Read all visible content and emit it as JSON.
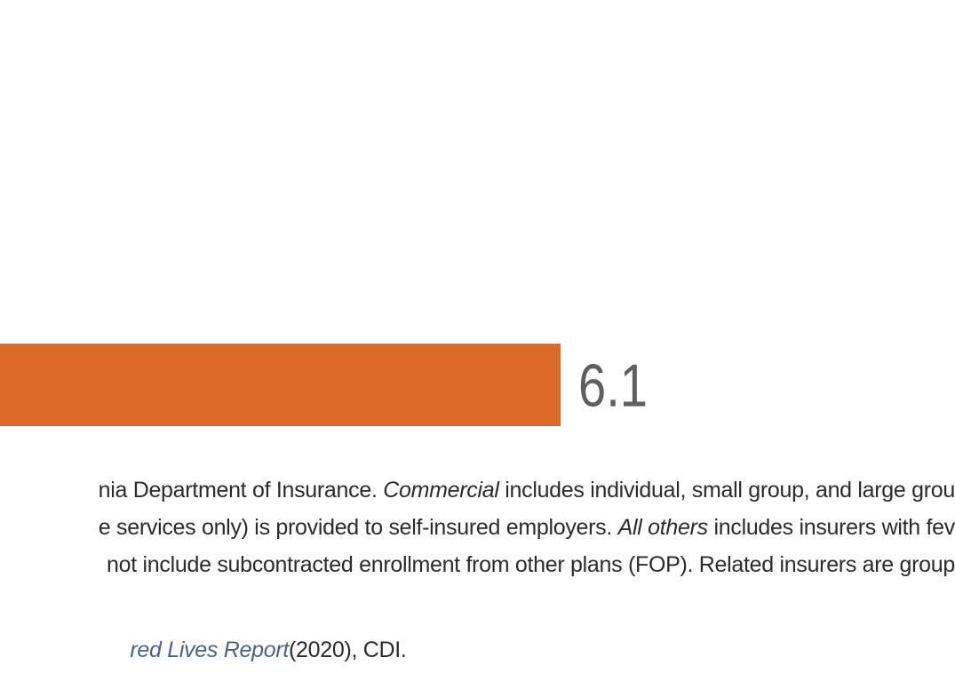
{
  "colors": {
    "bar": "#de6828",
    "label": "#5f5f5f",
    "text": "#2b2b2b",
    "source_link": "#4c6382"
  },
  "chart_data": {
    "type": "bar",
    "orientation": "horizontal",
    "categories": [
      ""
    ],
    "values": [
      6.1
    ],
    "data_labels": [
      "6.1"
    ],
    "title": "",
    "xlabel": "",
    "ylabel": "",
    "xlim": [
      0,
      6.1
    ]
  },
  "notes": {
    "line1": {
      "p1": "nia Department of Insurance. ",
      "p2": "Commercial",
      "p3": " includes individual, small group, and large grou"
    },
    "line2": {
      "p1": "e services only) is provided to self-insured employers. ",
      "p2": "All others",
      "p3": " includes insurers with fev"
    },
    "line3": {
      "p1": "not include subcontracted enrollment from other plans (FOP). Related insurers are group"
    }
  },
  "source": {
    "report": "red Lives Report",
    "tail": " (2020), CDI."
  }
}
